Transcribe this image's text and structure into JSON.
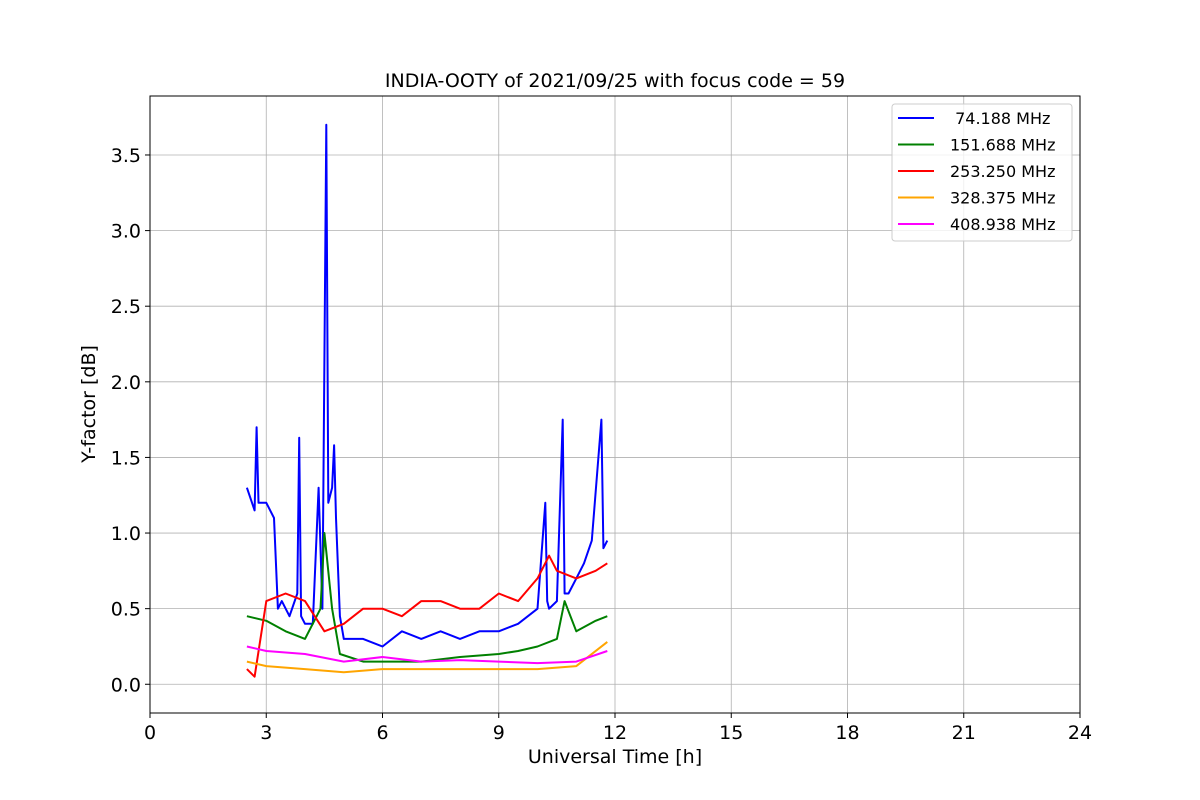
{
  "chart_data": {
    "type": "line",
    "title": "INDIA-OOTY of 2021/09/25 with focus code = 59",
    "xlabel": "Universal Time [h]",
    "ylabel": "Y-factor [dB]",
    "xlim": [
      0,
      24
    ],
    "ylim": [
      -0.19,
      3.89
    ],
    "xticks": [
      0,
      3,
      6,
      9,
      12,
      15,
      18,
      21,
      24
    ],
    "xtick_labels": [
      "0",
      "3",
      "6",
      "9",
      "12",
      "15",
      "18",
      "21",
      "24"
    ],
    "yticks": [
      0.0,
      0.5,
      1.0,
      1.5,
      2.0,
      2.5,
      3.0,
      3.5
    ],
    "ytick_labels": [
      "0.0",
      "0.5",
      "1.0",
      "1.5",
      "2.0",
      "2.5",
      "3.0",
      "3.5"
    ],
    "grid": true,
    "legend_position": "top-right",
    "series": [
      {
        "name": " 74.188 MHz",
        "color": "#0000ff",
        "x": [
          2.5,
          2.7,
          2.75,
          2.8,
          3.0,
          3.2,
          3.3,
          3.4,
          3.6,
          3.8,
          3.85,
          3.9,
          4.0,
          4.2,
          4.35,
          4.45,
          4.55,
          4.6,
          4.7,
          4.75,
          4.8,
          4.9,
          5.0,
          5.5,
          6.0,
          6.5,
          7.0,
          7.5,
          8.0,
          8.5,
          9.0,
          9.5,
          10.0,
          10.2,
          10.25,
          10.3,
          10.5,
          10.65,
          10.7,
          10.8,
          11.0,
          11.2,
          11.4,
          11.65,
          11.7,
          11.8
        ],
        "y": [
          1.3,
          1.15,
          1.7,
          1.2,
          1.2,
          1.1,
          0.5,
          0.55,
          0.45,
          0.6,
          1.63,
          0.45,
          0.4,
          0.4,
          1.3,
          0.5,
          3.7,
          1.2,
          1.3,
          1.58,
          1.1,
          0.45,
          0.3,
          0.3,
          0.25,
          0.35,
          0.3,
          0.35,
          0.3,
          0.35,
          0.35,
          0.4,
          0.5,
          1.2,
          0.55,
          0.5,
          0.55,
          1.75,
          0.6,
          0.6,
          0.7,
          0.8,
          0.95,
          1.75,
          0.9,
          0.95
        ]
      },
      {
        "name": "151.688 MHz",
        "color": "#008000",
        "x": [
          2.5,
          3.0,
          3.5,
          4.0,
          4.4,
          4.5,
          4.7,
          4.9,
          5.5,
          6.0,
          7.0,
          8.0,
          9.0,
          9.5,
          10.0,
          10.5,
          10.7,
          11.0,
          11.5,
          11.8
        ],
        "y": [
          0.45,
          0.42,
          0.35,
          0.3,
          0.5,
          1.0,
          0.5,
          0.2,
          0.15,
          0.15,
          0.15,
          0.18,
          0.2,
          0.22,
          0.25,
          0.3,
          0.55,
          0.35,
          0.42,
          0.45
        ]
      },
      {
        "name": "253.250 MHz",
        "color": "#ff0000",
        "x": [
          2.5,
          2.7,
          3.0,
          3.5,
          4.0,
          4.5,
          5.0,
          5.5,
          6.0,
          6.5,
          7.0,
          7.5,
          8.0,
          8.5,
          9.0,
          9.5,
          10.0,
          10.3,
          10.5,
          11.0,
          11.5,
          11.8
        ],
        "y": [
          0.1,
          0.05,
          0.55,
          0.6,
          0.55,
          0.35,
          0.4,
          0.5,
          0.5,
          0.45,
          0.55,
          0.55,
          0.5,
          0.5,
          0.6,
          0.55,
          0.7,
          0.85,
          0.75,
          0.7,
          0.75,
          0.8
        ]
      },
      {
        "name": "328.375 MHz",
        "color": "#ffa500",
        "x": [
          2.5,
          3.0,
          4.0,
          5.0,
          6.0,
          7.0,
          8.0,
          9.0,
          10.0,
          11.0,
          11.8
        ],
        "y": [
          0.15,
          0.12,
          0.1,
          0.08,
          0.1,
          0.1,
          0.1,
          0.1,
          0.1,
          0.12,
          0.28
        ]
      },
      {
        "name": "408.938 MHz",
        "color": "#ff00ff",
        "x": [
          2.5,
          3.0,
          4.0,
          5.0,
          6.0,
          7.0,
          8.0,
          9.0,
          10.0,
          11.0,
          11.8
        ],
        "y": [
          0.25,
          0.22,
          0.2,
          0.15,
          0.18,
          0.15,
          0.16,
          0.15,
          0.14,
          0.15,
          0.22
        ]
      }
    ]
  }
}
